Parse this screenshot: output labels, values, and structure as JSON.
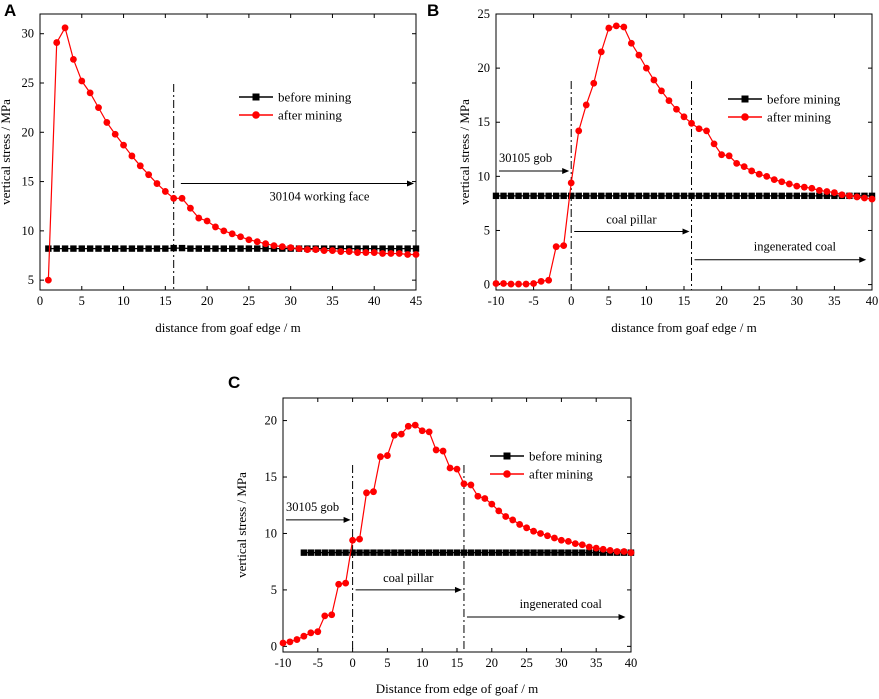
{
  "chart_data": [
    {
      "panel": "A",
      "type": "line",
      "xlabel": "distance from goaf edge / m",
      "ylabel": "vertical stress / MPa",
      "xlim": [
        0,
        45
      ],
      "ylim": [
        4,
        32
      ],
      "xticks": [
        0,
        5,
        10,
        15,
        20,
        25,
        30,
        35,
        40,
        45
      ],
      "yticks": [
        5,
        10,
        15,
        20,
        25,
        30
      ],
      "legend": "right",
      "series": [
        {
          "name": "before mining",
          "color": "#000000",
          "marker": "square",
          "x": [
            1,
            2,
            3,
            4,
            5,
            6,
            7,
            8,
            9,
            10,
            11,
            12,
            13,
            14,
            15,
            16,
            17,
            18,
            19,
            20,
            21,
            22,
            23,
            24,
            25,
            26,
            27,
            28,
            29,
            30,
            31,
            32,
            33,
            34,
            35,
            36,
            37,
            38,
            39,
            40,
            41,
            42,
            43,
            44,
            45
          ],
          "y": [
            8.2,
            8.2,
            8.2,
            8.2,
            8.2,
            8.2,
            8.2,
            8.2,
            8.2,
            8.2,
            8.2,
            8.2,
            8.2,
            8.2,
            8.2,
            8.25,
            8.25,
            8.2,
            8.2,
            8.2,
            8.2,
            8.2,
            8.2,
            8.2,
            8.2,
            8.2,
            8.2,
            8.2,
            8.2,
            8.2,
            8.2,
            8.2,
            8.2,
            8.2,
            8.2,
            8.2,
            8.2,
            8.2,
            8.2,
            8.2,
            8.2,
            8.2,
            8.2,
            8.2,
            8.2
          ]
        },
        {
          "name": "after mining",
          "color": "#ff0000",
          "marker": "circle",
          "x": [
            1,
            2,
            3,
            4,
            5,
            6,
            7,
            8,
            9,
            10,
            11,
            12,
            13,
            14,
            15,
            16,
            17,
            18,
            19,
            20,
            21,
            22,
            23,
            24,
            25,
            26,
            27,
            28,
            29,
            30,
            31,
            32,
            33,
            34,
            35,
            36,
            37,
            38,
            39,
            40,
            41,
            42,
            43,
            44,
            45
          ],
          "y": [
            5.0,
            29.1,
            30.6,
            27.4,
            25.2,
            24.0,
            22.5,
            21.0,
            19.8,
            18.7,
            17.6,
            16.6,
            15.7,
            14.8,
            14.0,
            13.3,
            13.3,
            12.3,
            11.3,
            11.0,
            10.4,
            10.0,
            9.7,
            9.4,
            9.1,
            8.9,
            8.7,
            8.5,
            8.4,
            8.3,
            8.2,
            8.1,
            8.1,
            8.0,
            8.0,
            7.9,
            7.9,
            7.8,
            7.8,
            7.8,
            7.7,
            7.7,
            7.7,
            7.6,
            7.6
          ]
        }
      ],
      "vlines": [
        16
      ],
      "annotations": [
        {
          "text": "30104 working face",
          "arrow": "right",
          "x_start": 16.5,
          "x_end": 45,
          "y": 14.8
        }
      ]
    },
    {
      "panel": "B",
      "type": "line",
      "xlabel": "distance from goaf edge / m",
      "ylabel": "vertical stress / MPa",
      "xlim": [
        -10,
        40
      ],
      "ylim": [
        -0.5,
        25
      ],
      "xticks": [
        -10,
        -5,
        0,
        5,
        10,
        15,
        20,
        25,
        30,
        35,
        40
      ],
      "yticks": [
        0,
        5,
        10,
        15,
        20,
        25
      ],
      "legend": "top-right",
      "series": [
        {
          "name": "before mining",
          "color": "#000000",
          "marker": "square",
          "x": [
            -10,
            -9,
            -8,
            -7,
            -6,
            -5,
            -4,
            -3,
            -2,
            -1,
            0,
            1,
            2,
            3,
            4,
            5,
            6,
            7,
            8,
            9,
            10,
            11,
            12,
            13,
            14,
            15,
            16,
            17,
            18,
            19,
            20,
            21,
            22,
            23,
            24,
            25,
            26,
            27,
            28,
            29,
            30,
            31,
            32,
            33,
            34,
            35,
            36,
            37,
            38,
            39,
            40
          ],
          "y": [
            8.2,
            8.2,
            8.2,
            8.2,
            8.2,
            8.2,
            8.2,
            8.2,
            8.2,
            8.2,
            8.2,
            8.2,
            8.2,
            8.2,
            8.2,
            8.2,
            8.2,
            8.2,
            8.2,
            8.2,
            8.2,
            8.2,
            8.2,
            8.2,
            8.2,
            8.2,
            8.2,
            8.2,
            8.2,
            8.2,
            8.2,
            8.2,
            8.2,
            8.2,
            8.2,
            8.2,
            8.2,
            8.2,
            8.2,
            8.2,
            8.2,
            8.2,
            8.2,
            8.2,
            8.2,
            8.2,
            8.2,
            8.2,
            8.2,
            8.2,
            8.2
          ]
        },
        {
          "name": "after mining",
          "color": "#ff0000",
          "marker": "circle",
          "x": [
            -10,
            -9,
            -8,
            -7,
            -6,
            -5,
            -4,
            -3,
            -2,
            -1,
            0,
            1,
            2,
            3,
            4,
            5,
            6,
            7,
            8,
            9,
            10,
            11,
            12,
            13,
            14,
            15,
            16,
            17,
            18,
            19,
            20,
            21,
            22,
            23,
            24,
            25,
            26,
            27,
            28,
            29,
            30,
            31,
            32,
            33,
            34,
            35,
            36,
            37,
            38,
            39,
            40
          ],
          "y": [
            0.1,
            0.1,
            0.05,
            0.05,
            0.05,
            0.1,
            0.3,
            0.4,
            3.5,
            3.6,
            9.4,
            14.2,
            16.6,
            18.6,
            21.5,
            23.7,
            23.9,
            23.8,
            22.3,
            21.2,
            20.0,
            18.9,
            17.9,
            17.0,
            16.2,
            15.5,
            14.9,
            14.4,
            14.2,
            13.0,
            12.0,
            11.9,
            11.2,
            10.9,
            10.5,
            10.2,
            10.0,
            9.7,
            9.5,
            9.3,
            9.1,
            9.0,
            8.9,
            8.7,
            8.6,
            8.5,
            8.3,
            8.2,
            8.1,
            8.0,
            7.9
          ]
        }
      ],
      "vlines": [
        0,
        16
      ],
      "annotations": [
        {
          "text": "30105 gob",
          "arrow": "right",
          "x_start": -10,
          "x_end": 0,
          "y": 10.5
        },
        {
          "text": "coal pillar",
          "arrow": "right",
          "x_start": 0,
          "x_end": 16,
          "y": 4.9
        },
        {
          "text": "ingenerated coal",
          "arrow": "right",
          "x_start": 16,
          "x_end": 39.5,
          "y": 2.3
        }
      ]
    },
    {
      "panel": "C",
      "type": "line",
      "xlabel": "Distance from edge of goaf / m",
      "ylabel": "vertical stress / MPa",
      "xlim": [
        -10,
        40
      ],
      "ylim": [
        -0.5,
        22
      ],
      "xticks": [
        -10,
        -5,
        0,
        5,
        10,
        15,
        20,
        25,
        30,
        35,
        40
      ],
      "yticks": [
        0,
        5,
        10,
        15,
        20
      ],
      "legend": "top-right",
      "series": [
        {
          "name": "before mining",
          "color": "#000000",
          "marker": "square",
          "x": [
            -7,
            -6,
            -5,
            -4,
            -3,
            -2,
            -1,
            0,
            1,
            2,
            3,
            4,
            5,
            6,
            7,
            8,
            9,
            10,
            11,
            12,
            13,
            14,
            15,
            16,
            17,
            18,
            19,
            20,
            21,
            22,
            23,
            24,
            25,
            26,
            27,
            28,
            29,
            30,
            31,
            32,
            33,
            34,
            35,
            36,
            37,
            38,
            39,
            40
          ],
          "y": [
            8.3,
            8.3,
            8.3,
            8.3,
            8.3,
            8.3,
            8.3,
            8.3,
            8.3,
            8.3,
            8.3,
            8.3,
            8.3,
            8.3,
            8.3,
            8.3,
            8.3,
            8.3,
            8.3,
            8.3,
            8.3,
            8.3,
            8.3,
            8.3,
            8.3,
            8.3,
            8.3,
            8.3,
            8.3,
            8.3,
            8.3,
            8.3,
            8.3,
            8.3,
            8.3,
            8.3,
            8.3,
            8.3,
            8.3,
            8.3,
            8.3,
            8.3,
            8.3,
            8.3,
            8.3,
            8.3,
            8.3,
            8.3
          ]
        },
        {
          "name": "after mining",
          "color": "#ff0000",
          "marker": "circle",
          "x": [
            -10,
            -9,
            -8,
            -7,
            -6,
            -5,
            -4,
            -3,
            -2,
            -1,
            0,
            1,
            2,
            3,
            4,
            5,
            6,
            7,
            8,
            9,
            10,
            11,
            12,
            13,
            14,
            15,
            16,
            17,
            18,
            19,
            20,
            21,
            22,
            23,
            24,
            25,
            26,
            27,
            28,
            29,
            30,
            31,
            32,
            33,
            34,
            35,
            36,
            37,
            38,
            39,
            40
          ],
          "y": [
            0.3,
            0.4,
            0.6,
            0.9,
            1.2,
            1.3,
            2.7,
            2.8,
            5.5,
            5.6,
            9.4,
            9.5,
            13.6,
            13.7,
            16.8,
            16.9,
            18.7,
            18.8,
            19.5,
            19.6,
            19.1,
            19.0,
            17.4,
            17.3,
            15.8,
            15.7,
            14.4,
            14.3,
            13.3,
            13.1,
            12.6,
            12.0,
            11.5,
            11.2,
            10.8,
            10.5,
            10.2,
            10.0,
            9.8,
            9.6,
            9.4,
            9.3,
            9.1,
            9.0,
            8.8,
            8.7,
            8.6,
            8.5,
            8.4,
            8.4,
            8.3
          ]
        }
      ],
      "vlines": [
        0,
        16
      ],
      "annotations": [
        {
          "text": "30105 gob",
          "arrow": "right",
          "x_start": -10,
          "x_end": 0,
          "y": 11.2
        },
        {
          "text": "coal pillar",
          "arrow": "right",
          "x_start": 0,
          "x_end": 16,
          "y": 5.0
        },
        {
          "text": "ingenerated coal",
          "arrow": "right",
          "x_start": 16,
          "x_end": 39.5,
          "y": 2.6
        }
      ]
    }
  ]
}
